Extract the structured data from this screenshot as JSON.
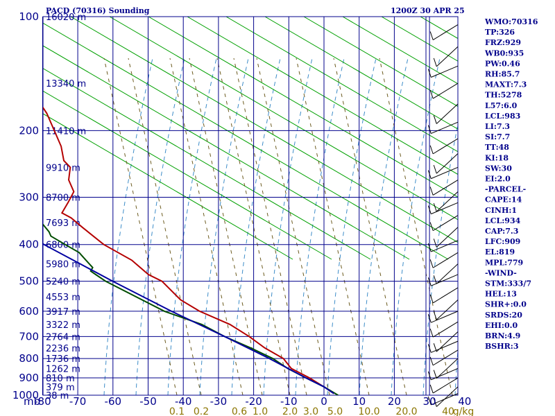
{
  "title_left": "PACD (70316) Sounding",
  "title_right": "1200Z 30 APR 25",
  "indices": [
    "WMO:70316",
    "TP:326",
    "FRZ:929",
    "WB0:935",
    "PW:0.46",
    "RH:85.7",
    "MAXT:7.3",
    "TH:5278",
    "L57:6.0",
    "LCL:983",
    "LI:7.3",
    "SI:7.7",
    "TT:48",
    "KI:18",
    "SW:30",
    "EI:2.0",
    "-PARCEL-",
    "CAPE:14",
    "CINH:1",
    "LCL:934",
    "CAP:7.3",
    "LFC:909",
    "EL:819",
    "MPL:779",
    "-WIND-",
    "STM:333/7",
    "HEL:13",
    "SHR+:0.0",
    "SRDS:20",
    "EHI:0.0",
    "BRN:4.9",
    "BSHR:3"
  ],
  "colors": {
    "grid": "#00008B",
    "dry_adiabat": "#00A000",
    "moist_adiabat": "#3C8CC8",
    "mixing_ratio": "#6B5A1E",
    "temperature": "#B40000",
    "dewpoint": "#004D00",
    "parcel": "#0000A0",
    "wind_barb": "#000000"
  },
  "chart_data": {
    "type": "line",
    "diagram": "skew-T log-p",
    "xlabel_unit": "mb",
    "mixing_ratio_unit": "g/kg",
    "xlim": [
      -80,
      0
    ],
    "pressure_levels": [
      100,
      200,
      300,
      400,
      500,
      600,
      700,
      800,
      900,
      1000
    ],
    "x_ticks": [
      -80,
      -70,
      -60,
      -50,
      -40,
      -30,
      -20,
      -10,
      0,
      10,
      20,
      30,
      40
    ],
    "mixing_ratio_labels": [
      "0.1",
      "0.2",
      "0.6",
      "1.0",
      "2.0",
      "3.0",
      "5.0",
      "10.0",
      "20.0",
      "40",
      "g/kg"
    ],
    "height_labels": [
      {
        "p": 100,
        "label": "16020 m"
      },
      {
        "p": 150,
        "label": "13340 m"
      },
      {
        "p": 200,
        "label": "11410 m"
      },
      {
        "p": 250,
        "label": "9910 m"
      },
      {
        "p": 300,
        "label": "8700 m"
      },
      {
        "p": 350,
        "label": "7693 m"
      },
      {
        "p": 400,
        "label": "6800 m"
      },
      {
        "p": 450,
        "label": "5980 m"
      },
      {
        "p": 500,
        "label": "5240 m"
      },
      {
        "p": 550,
        "label": "4553 m"
      },
      {
        "p": 600,
        "label": "3917 m"
      },
      {
        "p": 650,
        "label": "3322 m"
      },
      {
        "p": 700,
        "label": "2764 m"
      },
      {
        "p": 750,
        "label": "2236 m"
      },
      {
        "p": 800,
        "label": "1736 m"
      },
      {
        "p": 850,
        "label": "1262 m"
      },
      {
        "p": 900,
        "label": "810 m"
      },
      {
        "p": 950,
        "label": "379 m"
      },
      {
        "p": 1000,
        "label": "38 m"
      }
    ],
    "series": [
      {
        "key": "temperature",
        "points": [
          [
            100,
            -50
          ],
          [
            150,
            -46
          ],
          [
            180,
            -44
          ],
          [
            200,
            -44
          ],
          [
            220,
            -44
          ],
          [
            240,
            -45
          ],
          [
            250,
            -44
          ],
          [
            270,
            -46
          ],
          [
            290,
            -46
          ],
          [
            310,
            -49
          ],
          [
            330,
            -52
          ],
          [
            340,
            -50
          ],
          [
            360,
            -48
          ],
          [
            400,
            -44
          ],
          [
            440,
            -38
          ],
          [
            480,
            -35
          ],
          [
            500,
            -32
          ],
          [
            560,
            -29
          ],
          [
            600,
            -25
          ],
          [
            650,
            -18
          ],
          [
            700,
            -14
          ],
          [
            750,
            -11
          ],
          [
            800,
            -7
          ],
          [
            850,
            -6
          ],
          [
            900,
            -2
          ],
          [
            950,
            1
          ],
          [
            990,
            3
          ]
        ]
      },
      {
        "key": "dewpoint",
        "points": [
          [
            140,
            -80
          ],
          [
            180,
            -79
          ],
          [
            230,
            -76
          ],
          [
            260,
            -72
          ],
          [
            285,
            -70
          ],
          [
            300,
            -70
          ],
          [
            310,
            -72
          ],
          [
            330,
            -71
          ],
          [
            340,
            -63
          ],
          [
            350,
            -59
          ],
          [
            370,
            -58
          ],
          [
            380,
            -58
          ],
          [
            400,
            -55
          ],
          [
            420,
            -52
          ],
          [
            440,
            -51
          ],
          [
            460,
            -50
          ],
          [
            470,
            -51
          ],
          [
            480,
            -50
          ],
          [
            500,
            -48
          ],
          [
            600,
            -35
          ],
          [
            650,
            -26
          ],
          [
            700,
            -21
          ],
          [
            750,
            -15
          ],
          [
            800,
            -10
          ],
          [
            850,
            -7
          ],
          [
            900,
            -3
          ],
          [
            950,
            1
          ],
          [
            1000,
            4
          ]
        ]
      },
      {
        "key": "parcel",
        "points": [
          [
            260,
            -80
          ],
          [
            300,
            -75
          ],
          [
            400,
            -61
          ],
          [
            500,
            -46
          ],
          [
            600,
            -33
          ],
          [
            700,
            -21
          ],
          [
            800,
            -11
          ],
          [
            900,
            -3
          ],
          [
            950,
            1
          ],
          [
            990,
            3
          ]
        ]
      }
    ]
  }
}
